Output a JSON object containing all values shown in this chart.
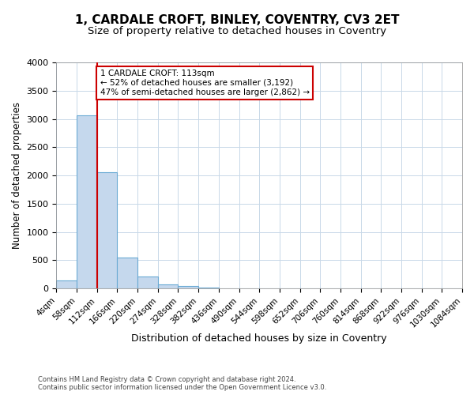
{
  "title": "1, CARDALE CROFT, BINLEY, COVENTRY, CV3 2ET",
  "subtitle": "Size of property relative to detached houses in Coventry",
  "xlabel": "Distribution of detached houses by size in Coventry",
  "ylabel": "Number of detached properties",
  "footer_line1": "Contains HM Land Registry data © Crown copyright and database right 2024.",
  "footer_line2": "Contains public sector information licensed under the Open Government Licence v3.0.",
  "bin_edges": [
    4,
    58,
    112,
    166,
    220,
    274,
    328,
    382,
    436,
    490,
    544,
    598,
    652,
    706,
    760,
    814,
    868,
    922,
    976,
    1030,
    1084
  ],
  "bar_heights": [
    150,
    3060,
    2060,
    555,
    210,
    80,
    50,
    20,
    10,
    5,
    3,
    2,
    1,
    1,
    1,
    1,
    0,
    0,
    0,
    0
  ],
  "bar_color": "#c5d8ed",
  "bar_edge_color": "#6aaad4",
  "property_size": 113,
  "vline_color": "#cc0000",
  "ylim": [
    0,
    4000
  ],
  "annotation_text": "1 CARDALE CROFT: 113sqm\n← 52% of detached houses are smaller (3,192)\n47% of semi-detached houses are larger (2,862) →",
  "annotation_box_color": "#ffffff",
  "annotation_box_edge_color": "#cc0000",
  "background_color": "#ffffff",
  "grid_color": "#c8d8e8",
  "title_fontsize": 11,
  "subtitle_fontsize": 9.5,
  "tick_label_fontsize": 7.5,
  "ylabel_fontsize": 8.5,
  "xlabel_fontsize": 9,
  "annotation_fontsize": 7.5
}
